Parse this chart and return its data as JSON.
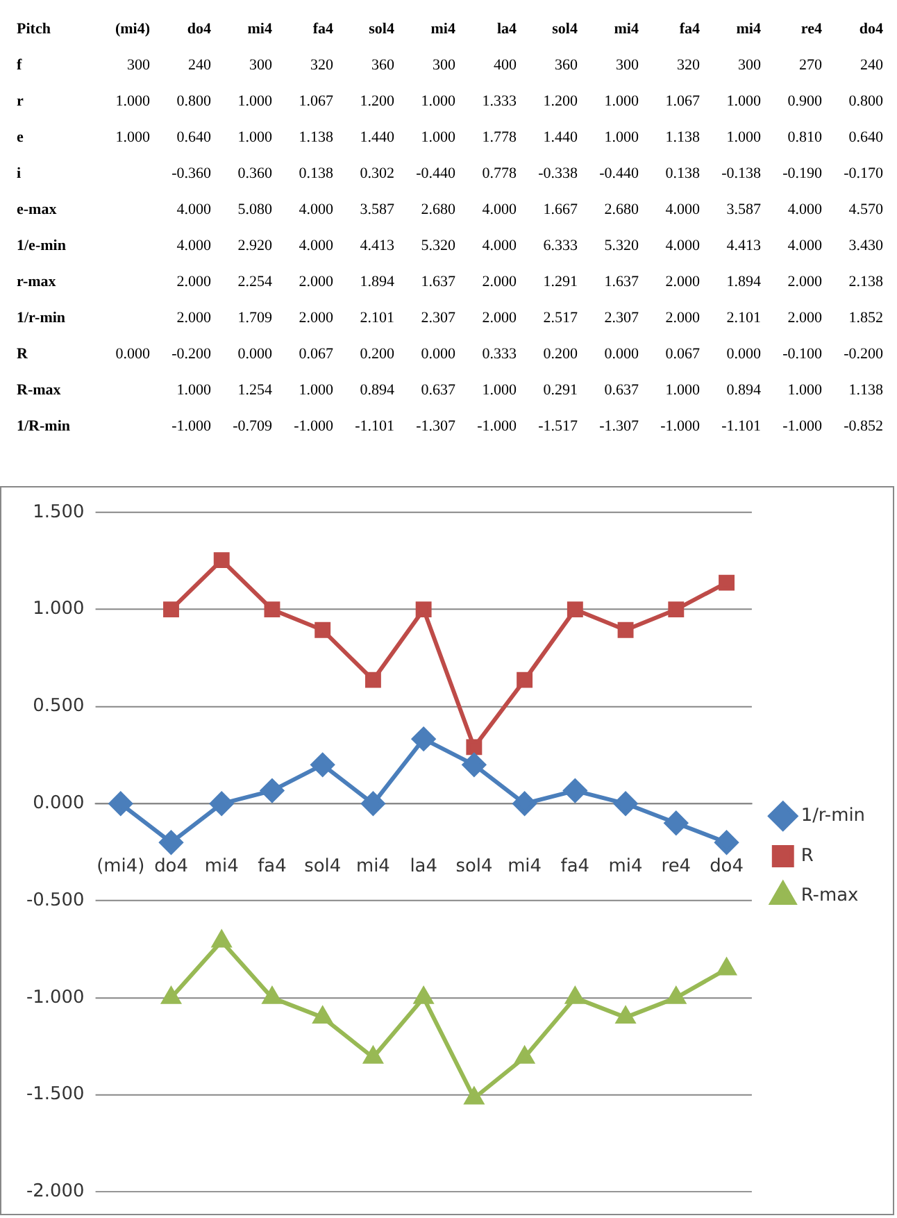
{
  "chart_data": [
    {
      "type": "other",
      "ylabel": "Pitch",
      "categories": [
        "(mi4)",
        "do4",
        "mi4",
        "fa4",
        "sol4",
        "mi4",
        "la4",
        "sol4",
        "mi4",
        "fa4",
        "mi4",
        "re4",
        "do4"
      ],
      "series": [
        {
          "name": "f",
          "values": [
            300,
            240,
            300,
            320,
            360,
            300,
            400,
            360,
            300,
            320,
            300,
            270,
            240
          ],
          "value_labels": [
            "300",
            "240",
            "300",
            "320",
            "360",
            "300",
            "400",
            "360",
            "300",
            "320",
            "300",
            "270",
            "240"
          ]
        },
        {
          "name": "r",
          "values": [
            1,
            0.8,
            1,
            1.067,
            1.2,
            1,
            1.333,
            1.2,
            1,
            1.067,
            1,
            0.9,
            0.8
          ],
          "value_labels": [
            "1.000",
            "0.800",
            "1.000",
            "1.067",
            "1.200",
            "1.000",
            "1.333",
            "1.200",
            "1.000",
            "1.067",
            "1.000",
            "0.900",
            "0.800"
          ]
        },
        {
          "name": "e",
          "values": [
            1,
            0.64,
            1,
            1.138,
            1.44,
            1,
            1.778,
            1.44,
            1,
            1.138,
            1,
            0.81,
            0.64
          ],
          "value_labels": [
            "1.000",
            "0.640",
            "1.000",
            "1.138",
            "1.440",
            "1.000",
            "1.778",
            "1.440",
            "1.000",
            "1.138",
            "1.000",
            "0.810",
            "0.640"
          ]
        },
        {
          "name": "i",
          "values": [
            null,
            -0.36,
            0.36,
            0.138,
            0.302,
            -0.44,
            0.778,
            -0.338,
            -0.44,
            0.138,
            -0.138,
            -0.19,
            -0.17
          ],
          "value_labels": [
            null,
            "-0.360",
            "0.360",
            "0.138",
            "0.302",
            "-0.440",
            "0.778",
            "-0.338",
            "-0.440",
            "0.138",
            "-0.138",
            "-0.190",
            "-0.170"
          ]
        },
        {
          "name": "e-max",
          "values": [
            null,
            4,
            5.08,
            4,
            3.587,
            2.68,
            4,
            1.667,
            2.68,
            4,
            3.587,
            4,
            4.57
          ],
          "value_labels": [
            null,
            "4.000",
            "5.080",
            "4.000",
            "3.587",
            "2.680",
            "4.000",
            "1.667",
            "2.680",
            "4.000",
            "3.587",
            "4.000",
            "4.570"
          ]
        },
        {
          "name": "1/e-min",
          "values": [
            null,
            4,
            2.92,
            4,
            4.413,
            5.32,
            4,
            6.333,
            5.32,
            4,
            4.413,
            4,
            3.43
          ],
          "value_labels": [
            null,
            "4.000",
            "2.920",
            "4.000",
            "4.413",
            "5.320",
            "4.000",
            "6.333",
            "5.320",
            "4.000",
            "4.413",
            "4.000",
            "3.430"
          ]
        },
        {
          "name": "r-max",
          "values": [
            null,
            2,
            2.254,
            2,
            1.894,
            1.637,
            2,
            1.291,
            1.637,
            2,
            1.894,
            2,
            2.138
          ],
          "value_labels": [
            null,
            "2.000",
            "2.254",
            "2.000",
            "1.894",
            "1.637",
            "2.000",
            "1.291",
            "1.637",
            "2.000",
            "1.894",
            "2.000",
            "2.138"
          ]
        },
        {
          "name": "1/r-min",
          "values": [
            null,
            2,
            1.709,
            2,
            2.101,
            2.307,
            2,
            2.517,
            2.307,
            2,
            2.101,
            2,
            1.852
          ],
          "value_labels": [
            null,
            "2.000",
            "1.709",
            "2.000",
            "2.101",
            "2.307",
            "2.000",
            "2.517",
            "2.307",
            "2.000",
            "2.101",
            "2.000",
            "1.852"
          ]
        },
        {
          "name": "R",
          "values": [
            0,
            -0.2,
            0,
            0.067,
            0.2,
            0,
            0.333,
            0.2,
            0,
            0.067,
            0,
            -0.1,
            -0.2
          ],
          "value_labels": [
            "0.000",
            "-0.200",
            "0.000",
            "0.067",
            "0.200",
            "0.000",
            "0.333",
            "0.200",
            "0.000",
            "0.067",
            "0.000",
            "-0.100",
            "-0.200"
          ]
        },
        {
          "name": "R-max",
          "values": [
            null,
            1,
            1.254,
            1,
            0.894,
            0.637,
            1,
            0.291,
            0.637,
            1,
            0.894,
            1,
            1.138
          ],
          "value_labels": [
            null,
            "1.000",
            "1.254",
            "1.000",
            "0.894",
            "0.637",
            "1.000",
            "0.291",
            "0.637",
            "1.000",
            "0.894",
            "1.000",
            "1.138"
          ]
        },
        {
          "name": "1/R-min",
          "values": [
            null,
            -1,
            -0.709,
            -1,
            -1.101,
            -1.307,
            -1,
            -1.517,
            -1.307,
            -1,
            -1.101,
            -1,
            -0.852
          ],
          "value_labels": [
            null,
            "-1.000",
            "-0.709",
            "-1.000",
            "-1.101",
            "-1.307",
            "-1.000",
            "-1.517",
            "-1.307",
            "-1.000",
            "-1.101",
            "-1.000",
            "-0.852"
          ]
        }
      ]
    },
    {
      "type": "line",
      "categories": [
        "(mi4)",
        "do4",
        "mi4",
        "fa4",
        "sol4",
        "mi4",
        "la4",
        "sol4",
        "mi4",
        "fa4",
        "mi4",
        "re4",
        "do4"
      ],
      "ylim": [
        -2,
        1.5
      ],
      "yticks": [
        {
          "value": -2,
          "label": "-2.000"
        },
        {
          "value": -1.5,
          "label": "-1.500"
        },
        {
          "value": -1,
          "label": "-1.000"
        },
        {
          "value": -0.5,
          "label": "-0.500"
        },
        {
          "value": 0,
          "label": "0.000"
        },
        {
          "value": 0.5,
          "label": "0.500"
        },
        {
          "value": 1,
          "label": "1.000"
        },
        {
          "value": 1.5,
          "label": "1.500"
        }
      ],
      "grid": "y",
      "legend": "right",
      "series": [
        {
          "name": "1/r-min",
          "color": "#4a7ebb",
          "marker": "diamond",
          "values": [
            0,
            -0.2,
            0,
            0.067,
            0.2,
            0,
            0.333,
            0.2,
            0,
            0.067,
            0,
            -0.1,
            -0.2
          ]
        },
        {
          "name": "R",
          "color": "#be4b48",
          "marker": "square",
          "values": [
            null,
            1,
            1.254,
            1,
            0.894,
            0.637,
            1,
            0.291,
            0.637,
            1,
            0.894,
            1,
            1.138
          ]
        },
        {
          "name": "R-max",
          "color": "#98b954",
          "marker": "triangle",
          "values": [
            null,
            -1,
            -0.709,
            -1,
            -1.101,
            -1.307,
            -1,
            -1.517,
            -1.307,
            -1,
            -1.101,
            -1,
            -0.852
          ]
        }
      ]
    }
  ]
}
